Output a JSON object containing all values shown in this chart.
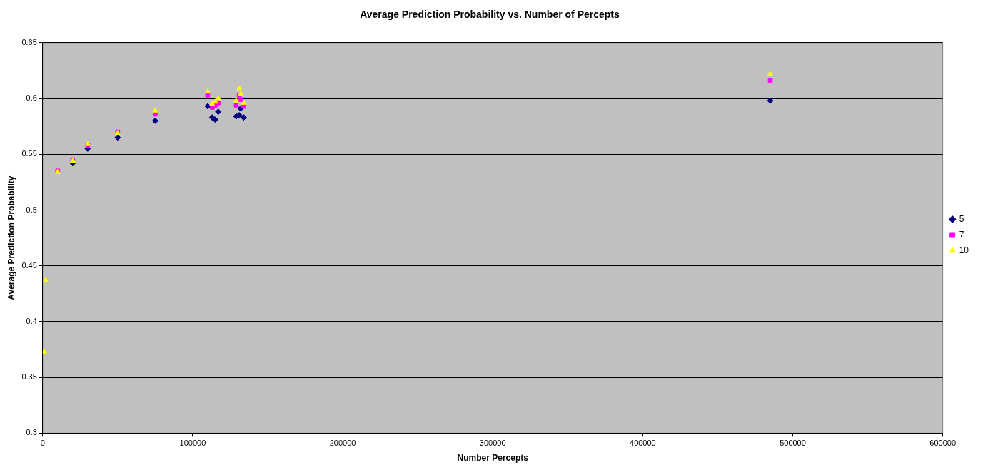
{
  "chart_data": {
    "type": "scatter",
    "title": "Average Prediction Probability vs. Number of Percepts",
    "xlabel": "Number Percepts",
    "ylabel": "Average Prediction Probability",
    "xlim": [
      0,
      600000
    ],
    "xticks": [
      0,
      100000,
      200000,
      300000,
      400000,
      500000,
      600000
    ],
    "ylim": [
      0.3,
      0.65
    ],
    "yticks": [
      0.3,
      0.35,
      0.4,
      0.45,
      0.5,
      0.55,
      0.6,
      0.65
    ],
    "grid": "y",
    "legend": "right",
    "x": [
      1000,
      2000,
      10000,
      20000,
      30000,
      50000,
      75000,
      110000,
      113000,
      115000,
      117000,
      129000,
      131000,
      132000,
      134000,
      485000
    ],
    "series": [
      {
        "name": "5",
        "color": "#000080",
        "marker": "diamond",
        "values": [
          null,
          null,
          null,
          0.542,
          0.555,
          0.565,
          0.58,
          0.593,
          0.583,
          0.581,
          0.588,
          0.584,
          0.585,
          0.591,
          0.583,
          0.598
        ]
      },
      {
        "name": "7",
        "color": "#ff00ff",
        "marker": "square",
        "values": [
          null,
          null,
          0.535,
          0.545,
          0.558,
          0.57,
          0.586,
          0.603,
          0.592,
          0.594,
          0.596,
          0.594,
          0.603,
          0.599,
          0.593,
          0.616
        ]
      },
      {
        "name": "10",
        "color": "#ffff00",
        "marker": "triangle",
        "values": [
          0.373,
          0.437,
          0.534,
          0.544,
          0.559,
          0.569,
          0.589,
          0.606,
          0.595,
          0.597,
          0.6,
          0.598,
          0.609,
          0.604,
          0.596,
          0.622
        ]
      }
    ]
  }
}
